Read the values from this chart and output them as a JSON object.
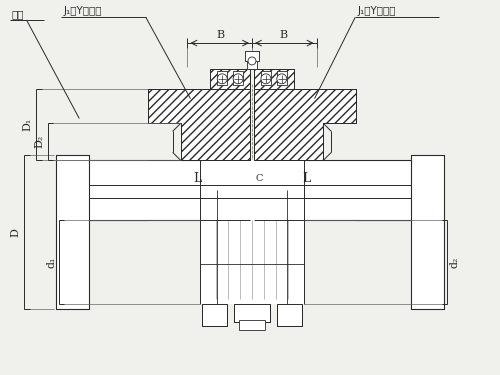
{
  "bg_color": "#f0f0ec",
  "line_color": "#2a2a2a",
  "white": "#ffffff",
  "labels": {
    "top_left": "轴孔",
    "top_left2": "J₁、Y型轴孔",
    "top_right": "J₁、Y型轴孔",
    "dim_B_left": "B",
    "dim_B_right": "B",
    "dim_L_left": "L",
    "dim_L_right": "L",
    "dim_C": "C",
    "dim_D": "D",
    "dim_D1": "D₁",
    "dim_D2": "D₂",
    "dim_d1": "d₁",
    "dim_d2": "d₂"
  },
  "figsize": [
    5.0,
    3.75
  ],
  "dpi": 100
}
